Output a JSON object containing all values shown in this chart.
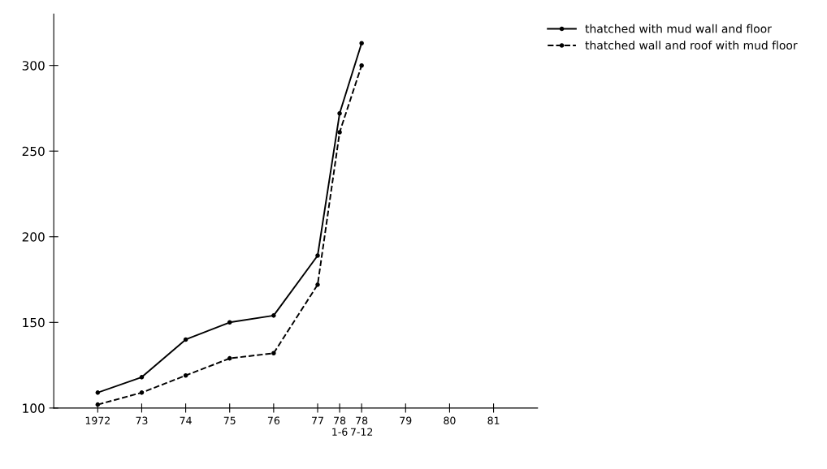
{
  "chart_data": {
    "type": "line",
    "x": [
      1972,
      1973,
      1974,
      1975,
      1976,
      1977,
      1977.5,
      1978
    ],
    "series": [
      {
        "name": "thatched with mud wall and floor",
        "color": "#000000",
        "line_style": "solid",
        "values": [
          109,
          118,
          140,
          150,
          154,
          189,
          272,
          313
        ]
      },
      {
        "name": "thatched wall and roof with mud floor",
        "color": "#000000",
        "line_style": "dashed",
        "values": [
          102,
          109,
          119,
          129,
          132,
          172,
          261,
          300
        ]
      }
    ],
    "marker": "circle",
    "xlim": [
      1971,
      1982
    ],
    "xticks": [
      {
        "value": 1972,
        "label": "1972"
      },
      {
        "value": 1973,
        "label": "73"
      },
      {
        "value": 1974,
        "label": "74"
      },
      {
        "value": 1975,
        "label": "75"
      },
      {
        "value": 1976,
        "label": "76"
      },
      {
        "value": 1977,
        "label": "77"
      },
      {
        "value": 1977.5,
        "label": "78\n1-6"
      },
      {
        "value": 1978,
        "label": "78\n7-12"
      },
      {
        "value": 1979,
        "label": "79"
      },
      {
        "value": 1980,
        "label": "80"
      },
      {
        "value": 1981,
        "label": "81"
      }
    ],
    "ylim": [
      100,
      330
    ],
    "yticks": [
      100,
      150,
      200,
      250,
      300
    ],
    "legend": "top right",
    "grid": false
  }
}
